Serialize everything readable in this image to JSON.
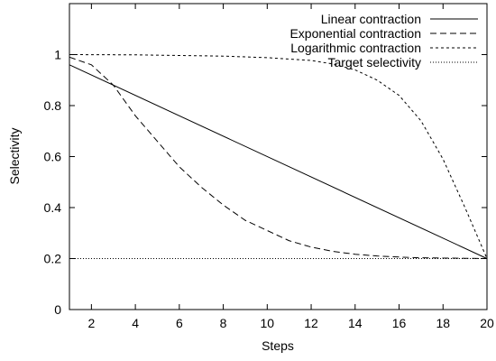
{
  "chart_data": {
    "type": "line",
    "xlabel": "Steps",
    "ylabel": "Selectivity",
    "xlim": [
      1,
      20
    ],
    "ylim": [
      0,
      1.2
    ],
    "xticks": [
      2,
      4,
      6,
      8,
      10,
      12,
      14,
      16,
      18,
      20
    ],
    "yticks": [
      0,
      0.2,
      0.4,
      0.6,
      0.8,
      1
    ],
    "grid": false,
    "legend_position": "top-right",
    "series": [
      {
        "name": "Linear contraction",
        "dash": "solid",
        "x": [
          1,
          20
        ],
        "y": [
          0.96,
          0.2
        ]
      },
      {
        "name": "Exponential contraction",
        "dash": "dashed",
        "x": [
          1,
          2,
          3,
          4,
          5,
          6,
          7,
          8,
          9,
          10,
          11,
          12,
          13,
          14,
          15,
          16,
          17,
          18,
          19,
          20
        ],
        "y": [
          0.99,
          0.96,
          0.88,
          0.76,
          0.66,
          0.56,
          0.48,
          0.41,
          0.35,
          0.31,
          0.27,
          0.245,
          0.228,
          0.217,
          0.21,
          0.206,
          0.203,
          0.202,
          0.201,
          0.2
        ]
      },
      {
        "name": "Logarithmic contraction",
        "dash": "short-dash",
        "x": [
          1,
          4,
          8,
          10,
          12,
          13,
          14,
          15,
          16,
          17,
          18,
          19,
          20
        ],
        "y": [
          1.0,
          0.999,
          0.994,
          0.988,
          0.977,
          0.963,
          0.94,
          0.9,
          0.84,
          0.74,
          0.59,
          0.4,
          0.2
        ]
      },
      {
        "name": "Target selectivity",
        "dash": "dotted",
        "x": [
          1,
          20
        ],
        "y": [
          0.2,
          0.2
        ]
      }
    ]
  }
}
